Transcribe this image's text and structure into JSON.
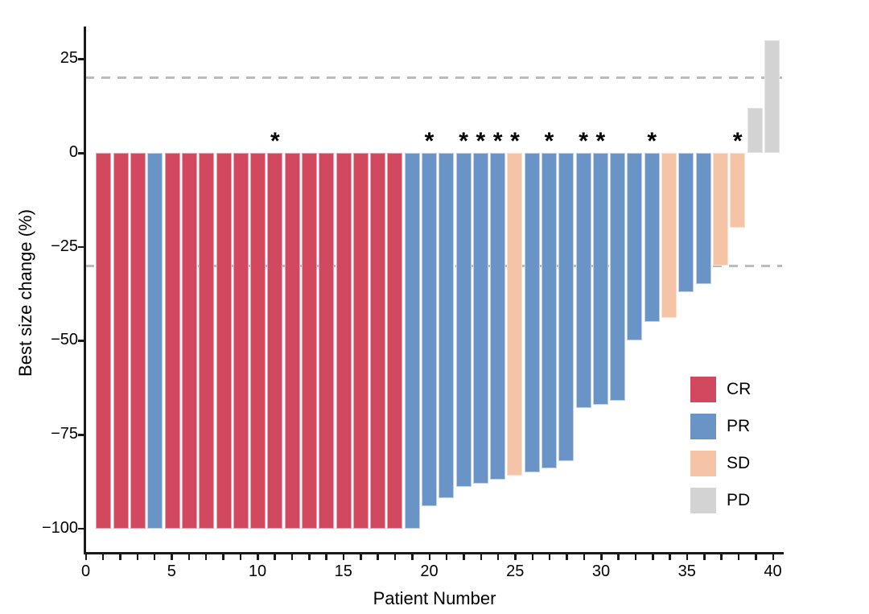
{
  "chart_data": {
    "type": "bar",
    "subtype": "waterfall",
    "title": "",
    "xlabel": "Patient Number",
    "ylabel": "Best size change (%)",
    "xlim": [
      0,
      40
    ],
    "ylim": [
      -100,
      33
    ],
    "grid": false,
    "y_ticks": [
      25,
      0,
      -25,
      -50,
      -75,
      -100
    ],
    "y_tick_labels": [
      "25",
      "0",
      "−25",
      "−50",
      "−75",
      "−100"
    ],
    "x_ticks": [
      0,
      5,
      10,
      15,
      20,
      25,
      30,
      35,
      40
    ],
    "x_tick_labels": [
      "0",
      "5",
      "10",
      "15",
      "20",
      "25",
      "30",
      "35",
      "40"
    ],
    "x_minor_tick_step": 1,
    "reference_lines": {
      "style": "dashed",
      "color": "#BCBCBC",
      "values": [
        20,
        -30
      ]
    },
    "annotation_symbol": "*",
    "annotated_patients": [
      11,
      20,
      22,
      23,
      24,
      25,
      27,
      29,
      30,
      33,
      38
    ],
    "legend": {
      "position": "inside-right",
      "entries": [
        "CR",
        "PR",
        "SD",
        "PD"
      ]
    },
    "colors": {
      "CR": "#D2495F",
      "PR": "#6B94C6",
      "SD": "#F5C4A6",
      "PD": "#D3D3D3"
    },
    "edge_colors": {
      "CR": "#E6A2AE",
      "PR": "#BDD1E6",
      "SD": "#FAE1D2",
      "PD": "#E4E4E4"
    },
    "patients": [
      {
        "patient": 1,
        "response": "CR",
        "value": -100,
        "starred": false
      },
      {
        "patient": 2,
        "response": "CR",
        "value": -100,
        "starred": false
      },
      {
        "patient": 3,
        "response": "CR",
        "value": -100,
        "starred": false
      },
      {
        "patient": 4,
        "response": "PR",
        "value": -100,
        "starred": false
      },
      {
        "patient": 5,
        "response": "CR",
        "value": -100,
        "starred": false
      },
      {
        "patient": 6,
        "response": "CR",
        "value": -100,
        "starred": false
      },
      {
        "patient": 7,
        "response": "CR",
        "value": -100,
        "starred": false
      },
      {
        "patient": 8,
        "response": "CR",
        "value": -100,
        "starred": false
      },
      {
        "patient": 9,
        "response": "CR",
        "value": -100,
        "starred": false
      },
      {
        "patient": 10,
        "response": "CR",
        "value": -100,
        "starred": false
      },
      {
        "patient": 11,
        "response": "CR",
        "value": -100,
        "starred": true
      },
      {
        "patient": 12,
        "response": "CR",
        "value": -100,
        "starred": false
      },
      {
        "patient": 13,
        "response": "CR",
        "value": -100,
        "starred": false
      },
      {
        "patient": 14,
        "response": "CR",
        "value": -100,
        "starred": false
      },
      {
        "patient": 15,
        "response": "CR",
        "value": -100,
        "starred": false
      },
      {
        "patient": 16,
        "response": "CR",
        "value": -100,
        "starred": false
      },
      {
        "patient": 17,
        "response": "CR",
        "value": -100,
        "starred": false
      },
      {
        "patient": 18,
        "response": "CR",
        "value": -100,
        "starred": false
      },
      {
        "patient": 19,
        "response": "PR",
        "value": -100,
        "starred": false
      },
      {
        "patient": 20,
        "response": "PR",
        "value": -94,
        "starred": true
      },
      {
        "patient": 21,
        "response": "PR",
        "value": -92,
        "starred": false
      },
      {
        "patient": 22,
        "response": "PR",
        "value": -89,
        "starred": true
      },
      {
        "patient": 23,
        "response": "PR",
        "value": -88,
        "starred": true
      },
      {
        "patient": 24,
        "response": "PR",
        "value": -87,
        "starred": true
      },
      {
        "patient": 25,
        "response": "SD",
        "value": -86,
        "starred": true
      },
      {
        "patient": 26,
        "response": "PR",
        "value": -85,
        "starred": false
      },
      {
        "patient": 27,
        "response": "PR",
        "value": -84,
        "starred": true
      },
      {
        "patient": 28,
        "response": "PR",
        "value": -82,
        "starred": false
      },
      {
        "patient": 29,
        "response": "PR",
        "value": -68,
        "starred": true
      },
      {
        "patient": 30,
        "response": "PR",
        "value": -67,
        "starred": true
      },
      {
        "patient": 31,
        "response": "PR",
        "value": -66,
        "starred": false
      },
      {
        "patient": 32,
        "response": "PR",
        "value": -50,
        "starred": false
      },
      {
        "patient": 33,
        "response": "PR",
        "value": -45,
        "starred": true
      },
      {
        "patient": 34,
        "response": "SD",
        "value": -44,
        "starred": false
      },
      {
        "patient": 35,
        "response": "PR",
        "value": -37,
        "starred": false
      },
      {
        "patient": 36,
        "response": "PR",
        "value": -35,
        "starred": false
      },
      {
        "patient": 37,
        "response": "SD",
        "value": -30,
        "starred": false
      },
      {
        "patient": 38,
        "response": "SD",
        "value": -20,
        "starred": true
      },
      {
        "patient": 39,
        "response": "PD",
        "value": 12,
        "starred": false
      },
      {
        "patient": 40,
        "response": "PD",
        "value": 30,
        "starred": false
      }
    ]
  }
}
